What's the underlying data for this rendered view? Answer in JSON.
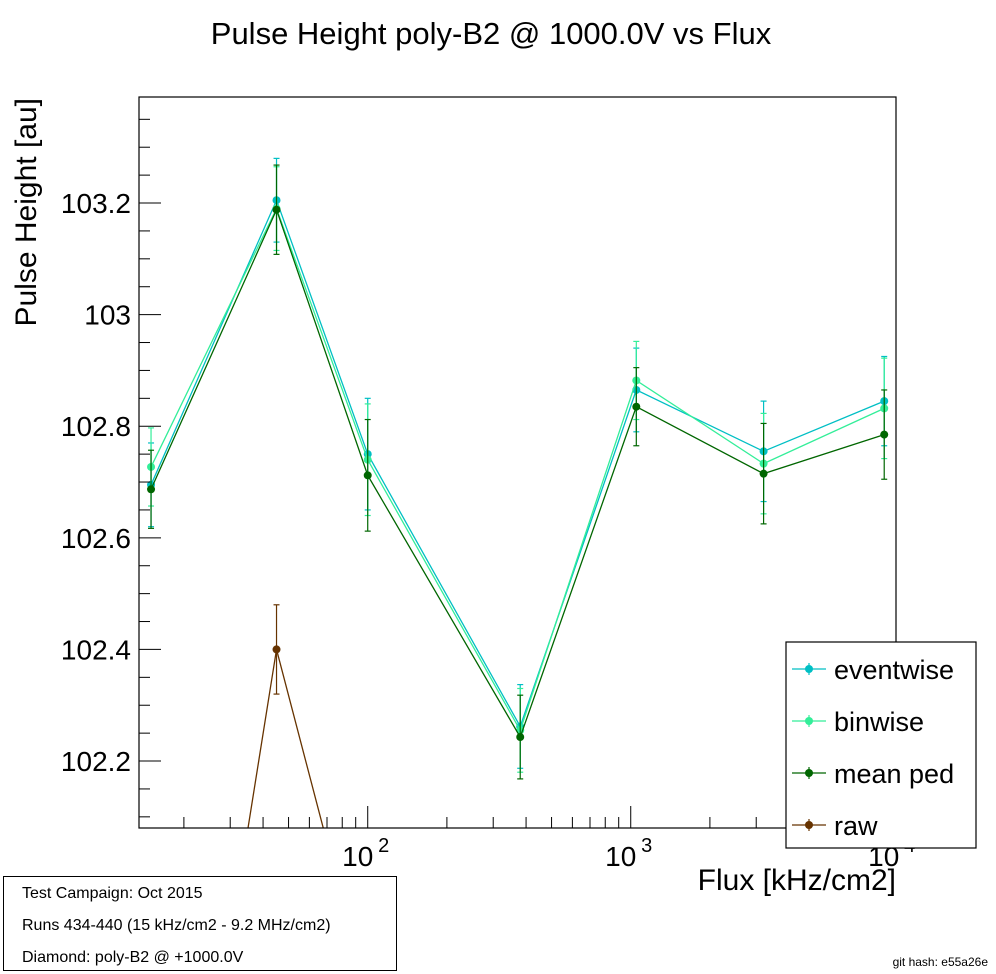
{
  "chart_data": {
    "type": "line",
    "title": "Pulse Height poly-B2 @ 1000.0V vs Flux",
    "xlabel": "Flux [kHz/cm2]",
    "ylabel": "Pulse Height [au]",
    "xscale": "log",
    "xlim": [
      13.5,
      10200
    ],
    "ylim": [
      102.08,
      103.39
    ],
    "x_tick_labels": [
      {
        "base": "10",
        "exp": "2",
        "value": 100
      },
      {
        "base": "10",
        "exp": "3",
        "value": 1000
      },
      {
        "base": "10",
        "exp": "4",
        "value": 10000
      }
    ],
    "y_ticks": [
      102.2,
      102.4,
      102.6,
      102.8,
      103,
      103.2
    ],
    "y_tick_labels": [
      "102.2",
      "102.4",
      "102.6",
      "102.8",
      "103",
      "103.2"
    ],
    "legend_position": "bottom-right",
    "series": [
      {
        "name": "eventwise",
        "color": "#00bfc4",
        "x": [
          15,
          45,
          100,
          380,
          1050,
          3200,
          9200
        ],
        "y": [
          102.695,
          103.205,
          102.75,
          102.262,
          102.865,
          102.755,
          102.845
        ],
        "err": [
          0.075,
          0.075,
          0.1,
          0.075,
          0.075,
          0.09,
          0.08
        ]
      },
      {
        "name": "binwise",
        "color": "#33ee99",
        "x": [
          15,
          45,
          100,
          380,
          1050,
          3200,
          9200
        ],
        "y": [
          102.727,
          103.19,
          102.74,
          102.255,
          102.882,
          102.733,
          102.832
        ],
        "err": [
          0.07,
          0.075,
          0.1,
          0.075,
          0.07,
          0.09,
          0.09
        ]
      },
      {
        "name": "mean ped",
        "color": "#006600",
        "x": [
          15,
          45,
          100,
          380,
          1050,
          3200,
          9200
        ],
        "y": [
          102.687,
          103.188,
          102.712,
          102.243,
          102.835,
          102.715,
          102.785
        ],
        "err": [
          0.07,
          0.08,
          0.1,
          0.075,
          0.07,
          0.09,
          0.08
        ]
      },
      {
        "name": "raw",
        "color": "#663300",
        "x": [
          45
        ],
        "y": [
          102.4
        ],
        "err": [
          0.08
        ],
        "line_from": {
          "x": 30,
          "y": 101.88
        },
        "line_to": {
          "x": 80,
          "y": 101.95
        }
      }
    ],
    "info": [
      "Test Campaign: Oct 2015",
      "Runs 434-440 (15 kHz/cm2 - 9.2 MHz/cm2)",
      "Diamond: poly-B2 @ +1000.0V"
    ],
    "git_hash": "git hash: e55a26e"
  }
}
